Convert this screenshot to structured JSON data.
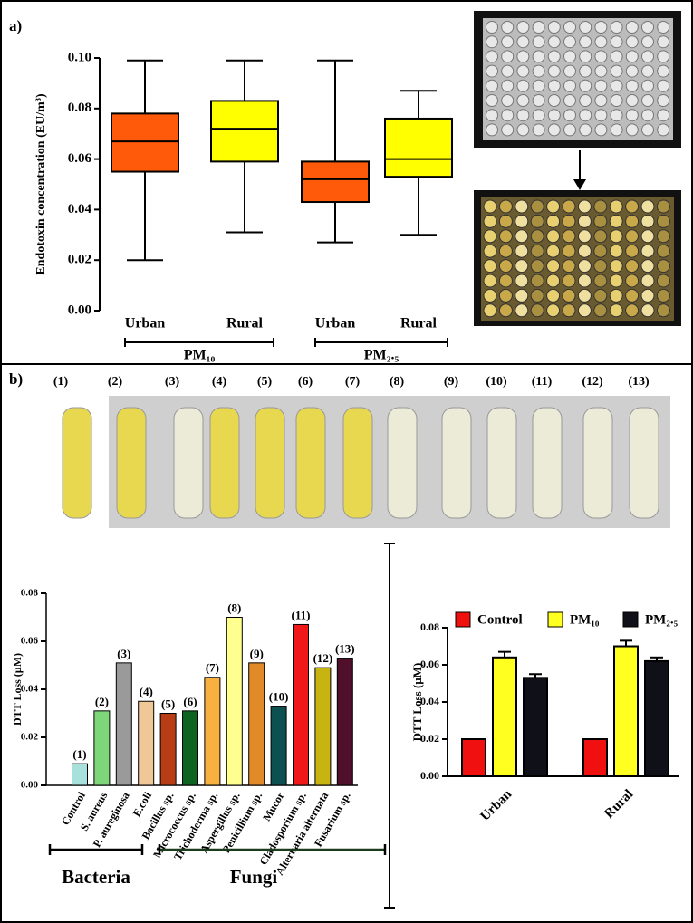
{
  "figure": {
    "panel_labels": [
      "a)",
      "b)"
    ],
    "tube_labels": [
      "(1)",
      "(2)",
      "(3)",
      "(4)",
      "(5)",
      "(6)",
      "(7)",
      "(8)",
      "(9)",
      "(10)",
      "(11)",
      "(12)",
      "(13)"
    ]
  },
  "chart_data": [
    {
      "type": "box",
      "ylabel": "Endotoxin concentration (EU/m³)",
      "categories": [
        "Urban",
        "Rural",
        "Urban",
        "Rural"
      ],
      "group_labels": [
        "PM₁₀",
        "PM₂.₅"
      ],
      "boxes": [
        {
          "min": 0.02,
          "q1": 0.055,
          "median": 0.067,
          "q3": 0.078,
          "max": 0.099,
          "color": "#ff5a0a"
        },
        {
          "min": 0.031,
          "q1": 0.059,
          "median": 0.072,
          "q3": 0.083,
          "max": 0.099,
          "color": "#ffff00"
        },
        {
          "min": 0.027,
          "q1": 0.043,
          "median": 0.052,
          "q3": 0.059,
          "max": 0.099,
          "color": "#ff5a0a"
        },
        {
          "min": 0.03,
          "q1": 0.053,
          "median": 0.06,
          "q3": 0.076,
          "max": 0.087,
          "color": "#ffff00"
        }
      ],
      "ylim": [
        0,
        0.1
      ],
      "yticks": [
        {
          "value": 0,
          "label": "0.00"
        },
        {
          "value": 0.02,
          "label": "0.02"
        },
        {
          "value": 0.04,
          "label": "0.04"
        },
        {
          "value": 0.06,
          "label": "0.06"
        },
        {
          "value": 0.08,
          "label": "0.08"
        },
        {
          "value": 0.1,
          "label": "0.10"
        }
      ]
    },
    {
      "type": "bar",
      "ylabel": "DTT Loss (µM)",
      "categories": [
        "Control",
        "S. aureus",
        "P. aureginosa",
        "E.coli",
        "Bacillus sp.",
        "Micrococcus sp.",
        "Trichoderma sp.",
        "Aspergillus sp.",
        "Penicillium sp.",
        "Mucor",
        "Cladosporium sp.",
        "Alternaria alternata",
        "Fusarium sp."
      ],
      "values": [
        0.009,
        0.031,
        0.051,
        0.035,
        0.03,
        0.031,
        0.045,
        0.07,
        0.051,
        0.033,
        0.067,
        0.049,
        0.053
      ],
      "colors": [
        "#a8e0dc",
        "#7ed67a",
        "#9a9a9a",
        "#f0c898",
        "#b83c14",
        "#0c6420",
        "#f8b040",
        "#ffff90",
        "#e08a28",
        "#0c5050",
        "#f01818",
        "#c8b410",
        "#50102c"
      ],
      "annotations": [
        "(1)",
        "(2)",
        "(3)",
        "(4)",
        "(5)",
        "(6)",
        "(7)",
        "(8)",
        "(9)",
        "(10)",
        "(11)",
        "(12)",
        "(13)"
      ],
      "group_labels": [
        "Bacteria",
        "Fungi"
      ],
      "ylim": [
        0,
        0.08
      ],
      "yticks": [
        {
          "value": 0,
          "label": "0.00"
        },
        {
          "value": 0.02,
          "label": "0.02"
        },
        {
          "value": 0.04,
          "label": "0.04"
        },
        {
          "value": 0.06,
          "label": "0.06"
        },
        {
          "value": 0.08,
          "label": "0.08"
        }
      ]
    },
    {
      "type": "grouped_bar",
      "ylabel": "DTT Loss (µM)",
      "categories": [
        "Urban",
        "Rural"
      ],
      "series": [
        {
          "name": "Control",
          "color": "#f01010",
          "values": [
            0.02,
            0.02
          ]
        },
        {
          "name": "PM₁₀",
          "color": "#ffff20",
          "values": [
            0.064,
            0.07
          ],
          "errors": [
            0.003,
            0.003
          ]
        },
        {
          "name": "PM₂.₅",
          "color": "#101018",
          "values": [
            0.053,
            0.062
          ],
          "errors": [
            0.002,
            0.002
          ]
        }
      ],
      "ylim": [
        0,
        0.08
      ],
      "yticks": [
        {
          "value": 0,
          "label": "0.00"
        },
        {
          "value": 0.02,
          "label": "0.02"
        },
        {
          "value": 0.04,
          "label": "0.04"
        },
        {
          "value": 0.06,
          "label": "0.06"
        },
        {
          "value": 0.08,
          "label": "0.08"
        }
      ]
    }
  ]
}
